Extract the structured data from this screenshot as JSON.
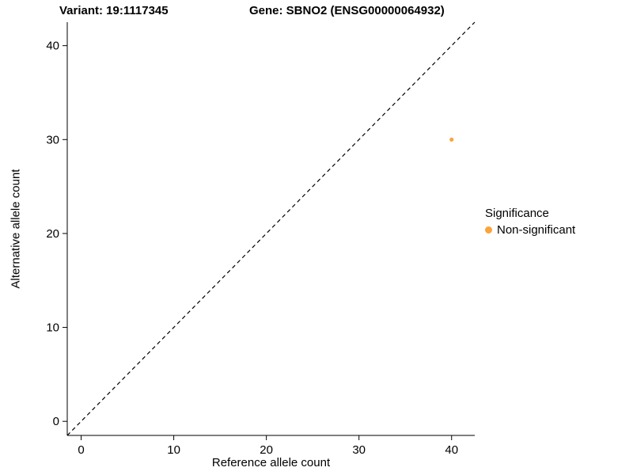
{
  "chart_data": {
    "type": "scatter",
    "title_left": "Variant: 19:1117345",
    "title_right": "Gene: SBNO2 (ENSG00000064932)",
    "xlabel": "Reference allele count",
    "ylabel": "Alternative allele count",
    "xlim": [
      -1.5,
      42.5
    ],
    "ylim": [
      -1.5,
      42.5
    ],
    "x_ticks": [
      0,
      10,
      20,
      30,
      40
    ],
    "y_ticks": [
      0,
      10,
      20,
      30,
      40
    ],
    "grid": false,
    "identity_line": {
      "style": "dashed",
      "from": [
        -1.5,
        -1.5
      ],
      "to": [
        42.5,
        42.5
      ],
      "color": "#000000"
    },
    "series": [
      {
        "name": "Non-significant",
        "color": "#FAA43A",
        "points": [
          {
            "x": 40,
            "y": 30
          }
        ]
      }
    ],
    "legend": {
      "title": "Significance",
      "position": "right",
      "entries": [
        {
          "label": "Non-significant",
          "color": "#FAA43A"
        }
      ]
    },
    "colors": {
      "axis": "#000000",
      "background": "#ffffff"
    }
  }
}
